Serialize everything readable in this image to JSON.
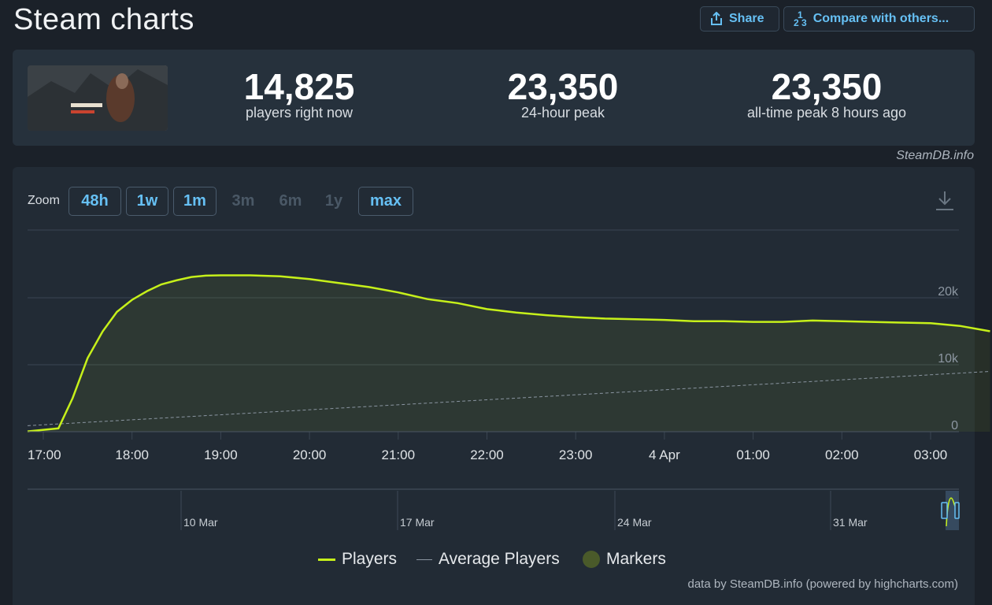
{
  "header": {
    "title": "Steam charts",
    "share_label": "Share",
    "compare_label": "Compare with others..."
  },
  "stats": [
    {
      "value": "14,825",
      "label": "players right now"
    },
    {
      "value": "23,350",
      "label": "24-hour peak"
    },
    {
      "value": "23,350",
      "label": "all-time peak 8 hours ago"
    }
  ],
  "credit": "SteamDB.info",
  "zoom": {
    "label": "Zoom",
    "buttons": [
      {
        "label": "48h",
        "enabled": true
      },
      {
        "label": "1w",
        "enabled": true
      },
      {
        "label": "1m",
        "enabled": true
      },
      {
        "label": "3m",
        "enabled": false
      },
      {
        "label": "6m",
        "enabled": false
      },
      {
        "label": "1y",
        "enabled": false
      },
      {
        "label": "max",
        "enabled": true
      }
    ]
  },
  "legend": [
    "Players",
    "Average Players",
    "Markers"
  ],
  "footer": "data by SteamDB.info (powered by highcharts.com)",
  "colors": {
    "players": "#c6f01a",
    "average": "#8a95a1",
    "accent": "#66c0f4"
  },
  "chart_data": {
    "type": "line",
    "x_tick_labels": [
      "17:00",
      "18:00",
      "19:00",
      "20:00",
      "21:00",
      "22:00",
      "23:00",
      "4 Apr",
      "01:00",
      "02:00",
      "03:00"
    ],
    "y_tick_labels": [
      "0",
      "10k",
      "20k"
    ],
    "ylim": [
      0,
      30000
    ],
    "grid": true,
    "navigator_labels": [
      "10 Mar",
      "17 Mar",
      "24 Mar",
      "31 Mar"
    ],
    "series": [
      {
        "name": "Players",
        "x_hours": [
          0,
          0.17,
          0.33,
          0.5,
          0.67,
          0.83,
          1,
          1.17,
          1.33,
          1.5,
          1.67,
          1.83,
          2,
          2.33,
          2.67,
          3,
          3.33,
          3.67,
          4,
          4.33,
          4.67,
          5,
          5.33,
          5.67,
          6,
          6.33,
          6.67,
          7,
          7.33,
          7.67,
          8,
          8.33,
          8.67,
          9,
          9.33,
          9.67,
          10,
          10.33,
          10.67
        ],
        "values": [
          50,
          500,
          5000,
          11000,
          15000,
          17900,
          19700,
          21000,
          22000,
          22600,
          23100,
          23300,
          23350,
          23350,
          23200,
          22800,
          22200,
          21600,
          20800,
          19800,
          19200,
          18300,
          17800,
          17400,
          17100,
          16900,
          16800,
          16700,
          16500,
          16500,
          16400,
          16400,
          16600,
          16500,
          16400,
          16300,
          16200,
          15800,
          15000
        ]
      },
      {
        "name": "Average Players",
        "x_hours": [
          0,
          10.67
        ],
        "values": [
          900,
          9000
        ]
      }
    ]
  }
}
